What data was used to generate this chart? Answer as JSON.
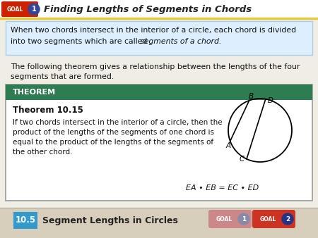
{
  "bg_color": "#f0ede4",
  "header_bg": "#ffffff",
  "header_title": "Finding Lengths of Segments in Chords",
  "header_underline_color": "#e8c840",
  "goal_badge_color": "#cc2200",
  "goal_number": "1",
  "blue_box_bg": "#ddeeff",
  "blue_box_border": "#aaccee",
  "blue_box_text1": "When two chords intersect in the interior of a circle, each chord is divided",
  "blue_box_text2": "into two segments which are called ",
  "blue_box_italic": "segments of a chord.",
  "body_text1": "The following theorem gives a relationship between the lengths of the four",
  "body_text2": "segments that are formed.",
  "theorem_header_bg": "#2e7d52",
  "theorem_header_text": "THEOREM",
  "theorem_box_bg": "#ffffff",
  "theorem_box_border": "#999999",
  "theorem_title": "Theorem 10.15",
  "theorem_body1": "If two chords intersect in the interior of a circle, then the",
  "theorem_body2": "product of the lengths of the segments of one chord is",
  "theorem_body3": "equal to the product of the lengths of the segments of",
  "theorem_body4": "the other chord.",
  "theorem_formula": "EA • EB = EC • ED",
  "footer_bg": "#d8cebc",
  "footer_section": "10.5",
  "footer_section_bg": "#3399cc",
  "footer_title": "Segment Lengths in Circles",
  "footer_goal1_color": "#cc8888",
  "footer_goal1_num_color": "#888aaa",
  "footer_goal2_color": "#cc3322",
  "footer_goal2_num_color": "#223388",
  "circle_color": "#000000",
  "chord_color": "#000000"
}
